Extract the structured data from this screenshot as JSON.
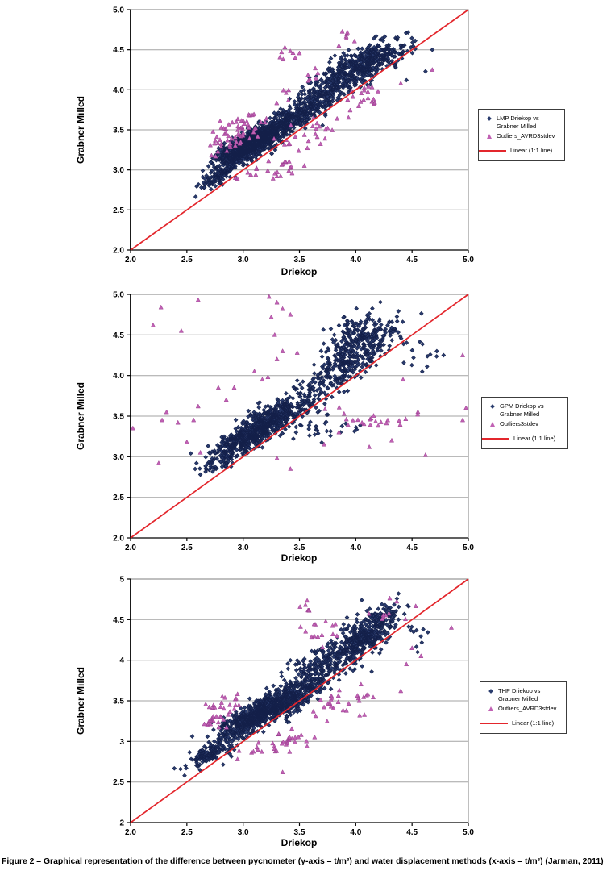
{
  "page": {
    "caption": "Figure 2 – Graphical representation of the difference between pycnometer (y-axis – t/m³) and water displacement methods (x-axis – t/m³) (Jarman, 2011)"
  },
  "colors": {
    "series_navy": "#2a3c6e",
    "series_navy_stroke": "#131f49",
    "outlier_pink": "#c161b4",
    "outlier_pink_stroke": "#9a3f90",
    "identity_line_red": "#e3262c",
    "gridline_gray": "#a3a3a3",
    "plot_border_gray": "#7f7f7f",
    "axis_black": "#000000"
  },
  "cluster_format": [
    "n",
    "cx",
    "cy",
    "sx",
    "sy",
    "rho"
  ],
  "chart_data": [
    {
      "type": "scatter",
      "xlabel": "Driekop",
      "ylabel": "Grabner Milled",
      "xlim": [
        2,
        5
      ],
      "ylim": [
        2,
        5
      ],
      "xticks": [
        2,
        2.5,
        3,
        3.5,
        4,
        4.5,
        5
      ],
      "xtick_labels": [
        "2.0",
        "2.5",
        "3.0",
        "3.5",
        "4.0",
        "4.5",
        "5.0"
      ],
      "yticks": [
        2,
        2.5,
        3,
        3.5,
        4,
        4.5,
        5
      ],
      "ytick_labels": [
        "2.0",
        "2.5",
        "3.0",
        "3.5",
        "4.0",
        "4.5",
        "5.0"
      ],
      "grid": "horizontal",
      "seed": 101,
      "legend": {
        "position": "right",
        "series_label": "LMP Driekop vs Grabner Milled",
        "outliers_label": "Outliers_AVRD3stdev",
        "line_label": "Linear (1:1 line)"
      },
      "line": {
        "name": "1:1 line",
        "from": [
          2,
          2
        ],
        "to": [
          5,
          5
        ]
      },
      "series": [
        {
          "name": "LMP Driekop vs Grabner Milled",
          "marker": "diamond",
          "clusters": [
            [
              550,
              3.02,
              3.28,
              0.13,
              0.13,
              0.75
            ],
            [
              450,
              3.22,
              3.44,
              0.13,
              0.12,
              0.7
            ],
            [
              200,
              3.52,
              3.72,
              0.12,
              0.13,
              0.6
            ],
            [
              220,
              3.78,
              4.02,
              0.13,
              0.15,
              0.6
            ],
            [
              380,
              4.1,
              4.35,
              0.15,
              0.13,
              0.6
            ],
            [
              90,
              2.78,
              2.92,
              0.08,
              0.08,
              0.7
            ],
            [
              15,
              4.42,
              4.5,
              0.1,
              0.12,
              0.3
            ]
          ],
          "points": [
            [
              4.68,
              4.5
            ],
            [
              4.62,
              4.23
            ],
            [
              4.45,
              4.12
            ]
          ]
        },
        {
          "name": "Outliers_AVRD3stdev",
          "marker": "triangle",
          "clusters": [
            [
              45,
              2.97,
              3.52,
              0.12,
              0.1,
              0.5
            ],
            [
              18,
              2.85,
              3.33,
              0.1,
              0.08,
              0.3
            ],
            [
              22,
              3.27,
              3.0,
              0.13,
              0.06,
              0.2
            ],
            [
              10,
              3.45,
              3.33,
              0.08,
              0.08,
              0
            ],
            [
              14,
              3.66,
              3.5,
              0.1,
              0.09,
              0
            ],
            [
              8,
              3.43,
              4.43,
              0.07,
              0.08,
              0
            ],
            [
              6,
              3.62,
              4.22,
              0.1,
              0.1,
              0
            ],
            [
              20,
              4.05,
              3.88,
              0.1,
              0.08,
              0
            ],
            [
              6,
              3.95,
              4.68,
              0.07,
              0.05,
              0
            ],
            [
              5,
              3.35,
              3.93,
              0.05,
              0.08,
              0
            ]
          ],
          "points": [
            [
              4.68,
              4.25
            ],
            [
              4.4,
              4.08
            ],
            [
              2.93,
              2.9
            ],
            [
              3.3,
              2.92
            ],
            [
              3.85,
              4.55
            ]
          ]
        }
      ]
    },
    {
      "type": "scatter",
      "xlabel": "Driekop",
      "ylabel": "Grabner Milled",
      "xlim": [
        2,
        5
      ],
      "ylim": [
        2,
        5
      ],
      "xticks": [
        2,
        2.5,
        3,
        3.5,
        4,
        4.5,
        5
      ],
      "xtick_labels": [
        "2.0",
        "2.5",
        "3.0",
        "3.5",
        "4.0",
        "4.5",
        "5.0"
      ],
      "yticks": [
        2,
        2.5,
        3,
        3.5,
        4,
        4.5,
        5
      ],
      "ytick_labels": [
        "2.0",
        "2.5",
        "3.0",
        "3.5",
        "4.0",
        "4.5",
        "5.0"
      ],
      "grid": "horizontal",
      "seed": 202,
      "legend": {
        "position": "right",
        "series_label": "GPM Driekop vs Grabner Milled",
        "outliers_label": "Outliers3stdev",
        "line_label": "Linear (1:1 line)"
      },
      "line": {
        "name": "1:1 line",
        "from": [
          2,
          2
        ],
        "to": [
          5,
          5
        ]
      },
      "series": [
        {
          "name": "GPM Driekop vs Grabner Milled",
          "marker": "diamond",
          "clusters": [
            [
              500,
              3.05,
              3.25,
              0.17,
              0.15,
              0.8
            ],
            [
              220,
              3.3,
              3.52,
              0.13,
              0.12,
              0.6
            ],
            [
              100,
              3.62,
              3.78,
              0.13,
              0.15,
              0.5
            ],
            [
              300,
              4.05,
              4.35,
              0.16,
              0.17,
              0.55
            ],
            [
              70,
              3.85,
              4.05,
              0.12,
              0.12,
              0.4
            ],
            [
              40,
              4.0,
              4.62,
              0.12,
              0.08,
              0.3
            ],
            [
              30,
              2.78,
              2.9,
              0.07,
              0.06,
              0.6
            ],
            [
              30,
              3.62,
              3.32,
              0.18,
              0.1,
              0
            ],
            [
              12,
              4.52,
              4.22,
              0.1,
              0.09,
              0
            ]
          ],
          "points": [
            [
              4.72,
              4.3
            ],
            [
              4.78,
              4.25
            ],
            [
              2.62,
              2.78
            ]
          ]
        },
        {
          "name": "Outliers3stdev",
          "marker": "triangle",
          "clusters": [
            [
              22,
              4.1,
              3.46,
              0.15,
              0.06,
              0
            ]
          ],
          "points": [
            [
              2.27,
              4.84
            ],
            [
              2.6,
              4.93
            ],
            [
              2.2,
              4.62
            ],
            [
              2.45,
              4.55
            ],
            [
              3.23,
              4.97
            ],
            [
              3.3,
              4.9
            ],
            [
              3.35,
              4.82
            ],
            [
              3.25,
              4.72
            ],
            [
              3.42,
              4.75
            ],
            [
              3.28,
              4.5
            ],
            [
              3.35,
              4.3
            ],
            [
              3.3,
              4.2
            ],
            [
              3.48,
              4.28
            ],
            [
              3.1,
              4.05
            ],
            [
              3.17,
              3.95
            ],
            [
              3.22,
              3.98
            ],
            [
              2.02,
              3.35
            ],
            [
              2.28,
              3.45
            ],
            [
              2.42,
              3.42
            ],
            [
              2.56,
              3.45
            ],
            [
              2.32,
              3.55
            ],
            [
              2.78,
              3.85
            ],
            [
              2.92,
              3.85
            ],
            [
              2.85,
              3.7
            ],
            [
              2.6,
              3.62
            ],
            [
              2.25,
              2.92
            ],
            [
              3.3,
              2.98
            ],
            [
              3.42,
              2.85
            ],
            [
              2.62,
              3.05
            ],
            [
              2.5,
              3.18
            ],
            [
              4.55,
              3.52
            ],
            [
              4.95,
              3.45
            ],
            [
              4.42,
              3.95
            ],
            [
              4.32,
              3.2
            ],
            [
              4.12,
              3.12
            ],
            [
              4.62,
              3.02
            ],
            [
              4.95,
              4.25
            ],
            [
              4.98,
              3.6
            ],
            [
              3.85,
              3.3
            ],
            [
              3.72,
              3.15
            ]
          ]
        }
      ]
    },
    {
      "type": "scatter",
      "xlabel": "Driekop",
      "ylabel": "Grabner Milled",
      "xlim": [
        2,
        5
      ],
      "ylim": [
        2,
        5
      ],
      "xticks": [
        2,
        2.5,
        3,
        3.5,
        4,
        4.5,
        5
      ],
      "xtick_labels": [
        "2.0",
        "2.5",
        "3.0",
        "3.5",
        "4.0",
        "4.5",
        "5.0"
      ],
      "yticks": [
        2,
        2.5,
        3,
        3.5,
        4,
        4.5,
        5
      ],
      "ytick_labels": [
        "2",
        "2.5",
        "3",
        "3.5",
        "4",
        "4.5",
        "5"
      ],
      "grid": "horizontal",
      "seed": 303,
      "legend": {
        "position": "right",
        "series_label": "THP Driekop vs Grabner Milled",
        "outliers_label": "Outliers_AVRD3stdev",
        "line_label": "Linear (1:1 line)"
      },
      "line": {
        "name": "1:1 line",
        "from": [
          2,
          2
        ],
        "to": [
          5,
          5
        ]
      },
      "series": [
        {
          "name": "THP Driekop vs Grabner Milled",
          "marker": "diamond",
          "clusters": [
            [
              130,
              2.72,
              2.86,
              0.1,
              0.08,
              0.7
            ],
            [
              550,
              3.1,
              3.3,
              0.16,
              0.13,
              0.75
            ],
            [
              320,
              3.38,
              3.52,
              0.13,
              0.12,
              0.6
            ],
            [
              200,
              3.65,
              3.85,
              0.13,
              0.15,
              0.5
            ],
            [
              320,
              4.0,
              4.2,
              0.15,
              0.16,
              0.6
            ],
            [
              130,
              4.2,
              4.45,
              0.1,
              0.12,
              0.5
            ],
            [
              10,
              4.5,
              4.35,
              0.08,
              0.15,
              0
            ]
          ],
          "points": [
            [
              4.6,
              4.38
            ],
            [
              4.55,
              4.1
            ],
            [
              4.38,
              4.82
            ],
            [
              2.48,
              2.58
            ]
          ]
        },
        {
          "name": "Outliers_AVRD3stdev",
          "marker": "triangle",
          "clusters": [
            [
              26,
              2.72,
              3.28,
              0.1,
              0.1,
              0
            ],
            [
              10,
              2.87,
              3.45,
              0.08,
              0.06,
              0
            ],
            [
              24,
              3.4,
              3.0,
              0.13,
              0.07,
              0
            ],
            [
              8,
              3.15,
              2.86,
              0.1,
              0.05,
              0
            ],
            [
              20,
              3.8,
              3.45,
              0.12,
              0.08,
              0
            ],
            [
              8,
              4.0,
              3.6,
              0.08,
              0.06,
              0
            ],
            [
              14,
              3.7,
              4.35,
              0.12,
              0.12,
              0
            ],
            [
              6,
              3.55,
              4.65,
              0.08,
              0.07,
              0
            ],
            [
              10,
              4.32,
              4.55,
              0.1,
              0.07,
              0
            ]
          ],
          "points": [
            [
              4.5,
              4.15
            ],
            [
              4.58,
              4.05
            ],
            [
              4.85,
              4.4
            ],
            [
              4.45,
              3.95
            ],
            [
              3.35,
              2.62
            ],
            [
              2.95,
              2.78
            ],
            [
              4.4,
              3.62
            ]
          ]
        }
      ]
    }
  ]
}
